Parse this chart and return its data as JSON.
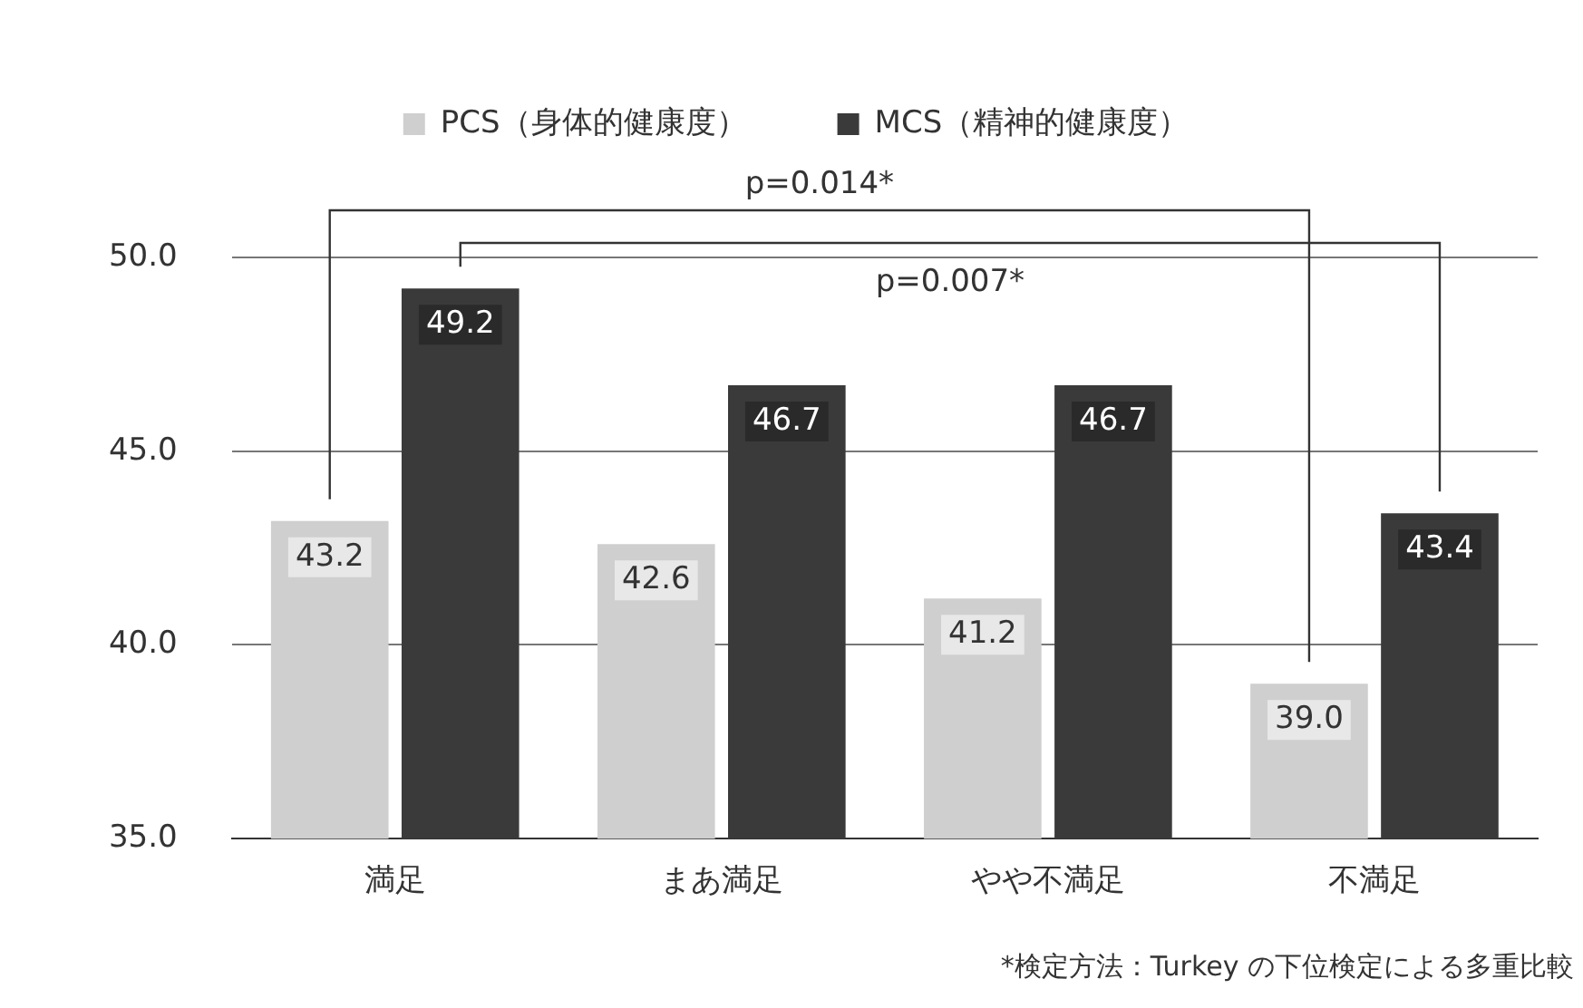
{
  "chart_data": {
    "type": "bar",
    "categories": [
      "満足",
      "まあ満足",
      "やや不満足",
      "不満足"
    ],
    "series": [
      {
        "name": "PCS（身体的健康度）",
        "color": "#cfcfcf",
        "values": [
          43.2,
          42.6,
          41.2,
          39.0
        ],
        "value_labels": [
          "43.2",
          "42.6",
          "41.2",
          "39.0"
        ]
      },
      {
        "name": "MCS（精神的健康度）",
        "color": "#3a3a3a",
        "values": [
          49.2,
          46.7,
          46.7,
          43.4
        ],
        "value_labels": [
          "49.2",
          "46.7",
          "46.7",
          "43.4"
        ]
      }
    ],
    "ylim": [
      35,
      50
    ],
    "yticks": [
      {
        "value": 35,
        "label": "35.0"
      },
      {
        "value": 40,
        "label": "40.0"
      },
      {
        "value": 45,
        "label": "45.0"
      },
      {
        "value": 50,
        "label": "50.0"
      }
    ],
    "grid": "y",
    "legend": "top",
    "annotations": [
      "p=0.014*",
      "p=0.007*",
      "*検定方法：Turkey の下位検定による多重比較"
    ]
  }
}
